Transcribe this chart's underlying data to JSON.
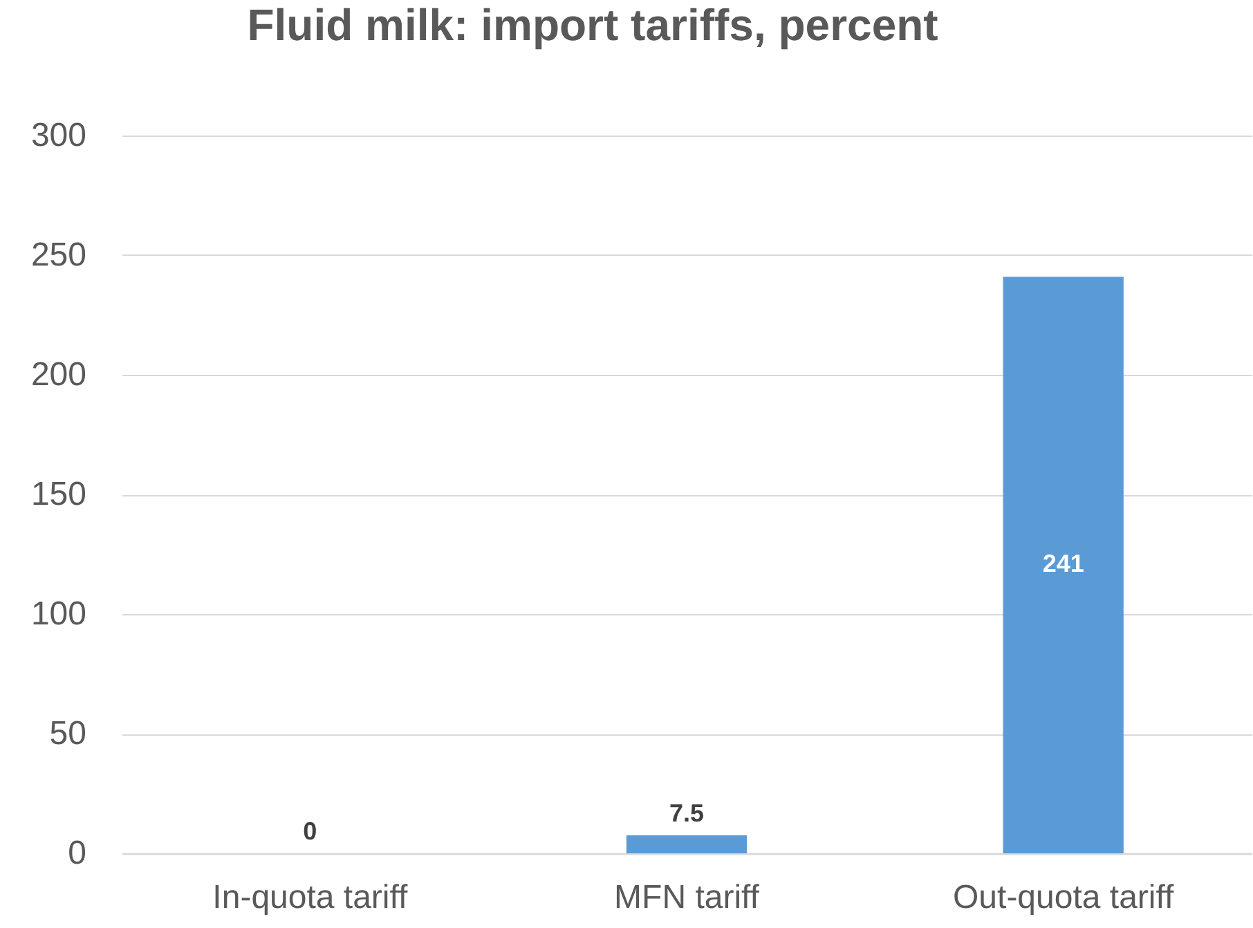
{
  "chart_data": {
    "type": "bar",
    "title": "Fluid milk: import tariffs, percent",
    "categories": [
      "In-quota tariff",
      "MFN tariff",
      "Out-quota tariff"
    ],
    "values": [
      0,
      7.5,
      241
    ],
    "color": "#5b9bd5",
    "ylim": [
      0,
      300
    ],
    "yticks": [
      0,
      50,
      100,
      150,
      200,
      250,
      300
    ],
    "grid": true,
    "data_labels": true
  }
}
